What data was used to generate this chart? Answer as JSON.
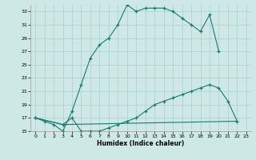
{
  "xlabel": "Humidex (Indice chaleur)",
  "bg_color": "#cde8e5",
  "line_color": "#1a7a6e",
  "grid_color": "#aad0cc",
  "xlim": [
    -0.5,
    23.5
  ],
  "ylim": [
    15,
    34
  ],
  "xticks": [
    0,
    1,
    2,
    3,
    4,
    5,
    6,
    7,
    8,
    9,
    10,
    11,
    12,
    13,
    14,
    15,
    16,
    17,
    18,
    19,
    20,
    21,
    22,
    23
  ],
  "yticks": [
    15,
    17,
    19,
    21,
    23,
    25,
    27,
    29,
    31,
    33
  ],
  "line1_x": [
    0,
    1,
    2,
    3,
    4,
    5,
    6,
    7,
    8,
    9,
    10,
    11,
    12,
    13,
    14,
    15,
    16,
    17,
    18,
    19,
    20
  ],
  "line1_y": [
    17,
    16.5,
    16,
    15,
    18,
    22,
    26,
    28,
    29,
    31,
    34,
    33,
    33.5,
    33.5,
    33.5,
    33,
    32,
    31,
    30,
    32.5,
    27
  ],
  "line2_x": [
    0,
    3,
    4,
    5,
    6,
    7,
    8,
    9,
    10,
    11,
    12,
    13,
    14,
    15,
    16,
    17,
    18,
    19,
    20,
    21,
    22
  ],
  "line2_y": [
    17,
    16,
    17,
    15,
    15,
    15,
    15.5,
    16,
    16.5,
    17,
    18,
    19,
    19.5,
    20,
    20.5,
    21,
    21.5,
    22,
    21.5,
    19.5,
    16.5
  ],
  "line3_x": [
    0,
    3,
    22
  ],
  "line3_y": [
    17,
    16,
    16.5
  ]
}
